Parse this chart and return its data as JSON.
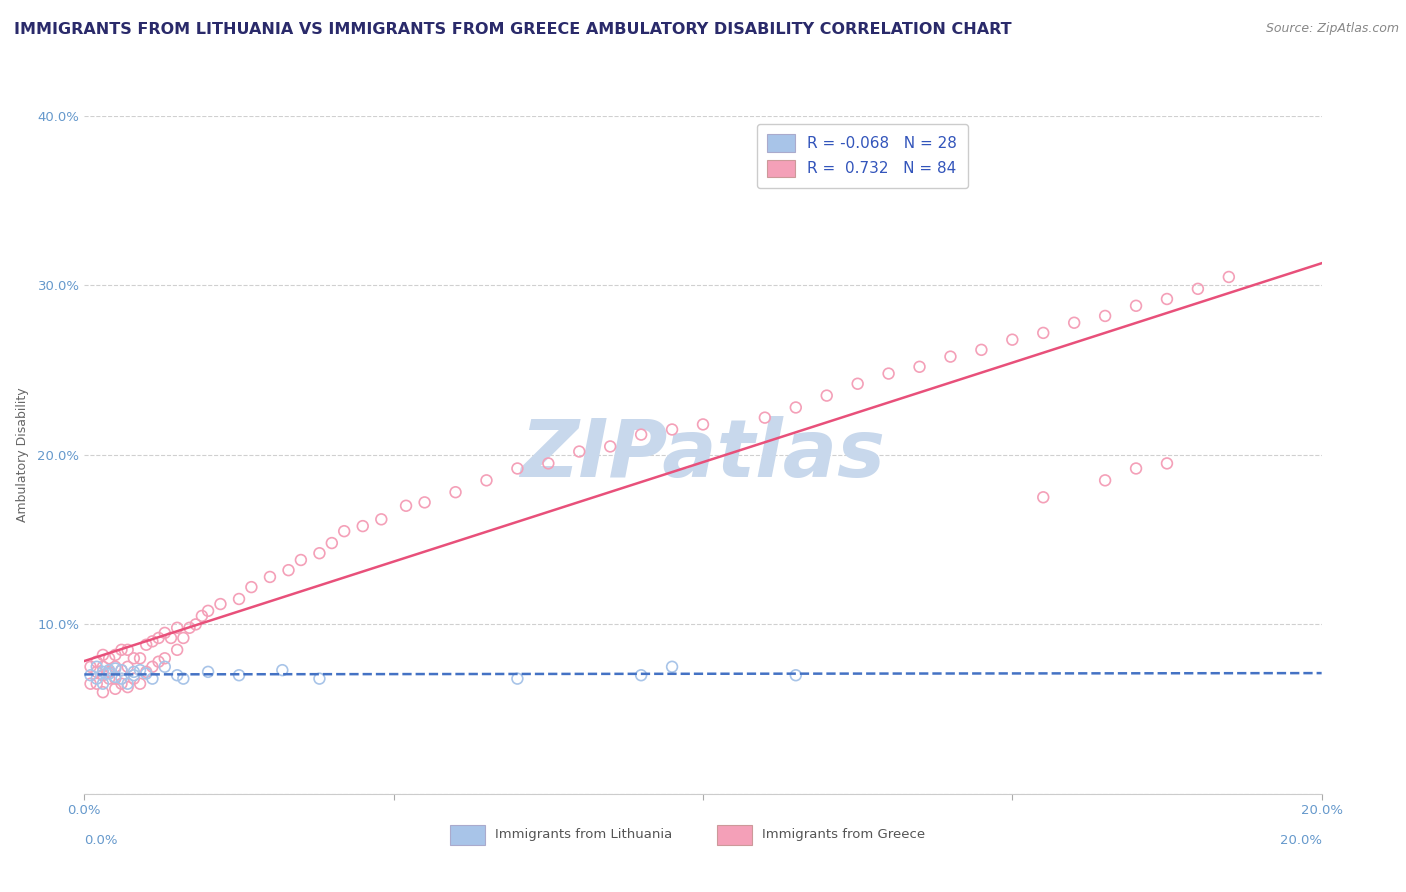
{
  "title": "IMMIGRANTS FROM LITHUANIA VS IMMIGRANTS FROM GREECE AMBULATORY DISABILITY CORRELATION CHART",
  "source": "Source: ZipAtlas.com",
  "ylabel": "Ambulatory Disability",
  "xmin": 0.0,
  "xmax": 0.2,
  "ymin": 0.0,
  "ymax": 0.4,
  "color_lithuania": "#a8c4e8",
  "color_greece": "#f4a0b8",
  "color_line_lithuania": "#4472c4",
  "color_line_greece": "#e8507a",
  "color_ytick": "#6699cc",
  "color_xtick": "#6699cc",
  "scatter_lithuania_x": [
    0.001,
    0.002,
    0.002,
    0.003,
    0.003,
    0.004,
    0.004,
    0.005,
    0.005,
    0.006,
    0.006,
    0.007,
    0.008,
    0.008,
    0.009,
    0.01,
    0.011,
    0.013,
    0.015,
    0.016,
    0.02,
    0.025,
    0.032,
    0.038,
    0.07,
    0.09,
    0.095,
    0.115
  ],
  "scatter_lithuania_y": [
    0.07,
    0.068,
    0.075,
    0.065,
    0.072,
    0.073,
    0.071,
    0.074,
    0.069,
    0.068,
    0.073,
    0.065,
    0.072,
    0.07,
    0.073,
    0.071,
    0.068,
    0.075,
    0.07,
    0.068,
    0.072,
    0.07,
    0.073,
    0.068,
    0.068,
    0.07,
    0.075,
    0.07
  ],
  "scatter_greece_x": [
    0.001,
    0.001,
    0.002,
    0.002,
    0.002,
    0.003,
    0.003,
    0.003,
    0.003,
    0.004,
    0.004,
    0.004,
    0.005,
    0.005,
    0.005,
    0.005,
    0.006,
    0.006,
    0.006,
    0.007,
    0.007,
    0.007,
    0.008,
    0.008,
    0.009,
    0.009,
    0.01,
    0.01,
    0.011,
    0.011,
    0.012,
    0.012,
    0.013,
    0.013,
    0.014,
    0.015,
    0.015,
    0.016,
    0.017,
    0.018,
    0.019,
    0.02,
    0.022,
    0.025,
    0.027,
    0.03,
    0.033,
    0.035,
    0.038,
    0.04,
    0.042,
    0.045,
    0.048,
    0.052,
    0.055,
    0.06,
    0.065,
    0.07,
    0.075,
    0.08,
    0.085,
    0.09,
    0.095,
    0.1,
    0.11,
    0.115,
    0.12,
    0.125,
    0.13,
    0.135,
    0.14,
    0.145,
    0.15,
    0.155,
    0.16,
    0.165,
    0.17,
    0.175,
    0.18,
    0.155,
    0.165,
    0.17,
    0.175,
    0.185
  ],
  "scatter_greece_y": [
    0.065,
    0.075,
    0.065,
    0.072,
    0.078,
    0.06,
    0.07,
    0.075,
    0.082,
    0.068,
    0.072,
    0.08,
    0.062,
    0.068,
    0.075,
    0.082,
    0.065,
    0.073,
    0.085,
    0.063,
    0.075,
    0.085,
    0.068,
    0.08,
    0.065,
    0.08,
    0.072,
    0.088,
    0.075,
    0.09,
    0.078,
    0.092,
    0.08,
    0.095,
    0.092,
    0.085,
    0.098,
    0.092,
    0.098,
    0.1,
    0.105,
    0.108,
    0.112,
    0.115,
    0.122,
    0.128,
    0.132,
    0.138,
    0.142,
    0.148,
    0.155,
    0.158,
    0.162,
    0.17,
    0.172,
    0.178,
    0.185,
    0.192,
    0.195,
    0.202,
    0.205,
    0.212,
    0.215,
    0.218,
    0.222,
    0.228,
    0.235,
    0.242,
    0.248,
    0.252,
    0.258,
    0.262,
    0.268,
    0.272,
    0.278,
    0.282,
    0.288,
    0.292,
    0.298,
    0.175,
    0.185,
    0.192,
    0.195,
    0.305
  ],
  "legend_r1": "-0.068",
  "legend_n1": "28",
  "legend_r2": "0.732",
  "legend_n2": "84",
  "watermark_text": "ZIPatlas",
  "watermark_color": "#c8d8ec",
  "title_fontsize": 11.5,
  "tick_fontsize": 9.5,
  "source_fontsize": 9,
  "axis_label_fontsize": 9,
  "background_color": "#ffffff",
  "grid_color": "#d0d0d0"
}
